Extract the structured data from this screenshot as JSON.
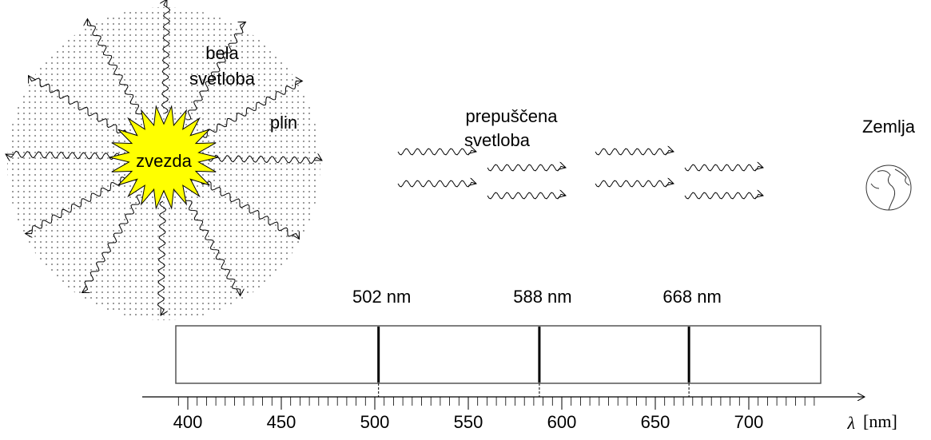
{
  "labels": {
    "white_light": [
      "bela",
      "svetloba"
    ],
    "gas": "plin",
    "star": "zvezda",
    "transmitted_light": [
      "prepuščena",
      "svetloba"
    ],
    "earth": "Zemlja"
  },
  "spectrum": {
    "lines": [
      {
        "value": 502,
        "label": "502 nm"
      },
      {
        "value": 588,
        "label": "588 nm"
      },
      {
        "value": 668,
        "label": "668 nm"
      }
    ],
    "xticks": [
      400,
      450,
      500,
      550,
      600,
      650,
      700
    ],
    "axis_symbol": "λ",
    "axis_unit": "[nm]"
  }
}
